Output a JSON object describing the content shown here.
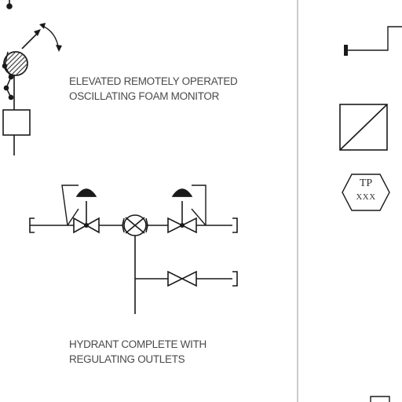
{
  "labels": {
    "foam_monitor": [
      "ELEVATED REMOTELY OPERATED",
      "OSCILLATING FOAM MONITOR"
    ],
    "hydrant": [
      "HYDRANT COMPLETE WITH",
      "REGULATING OUTLETS"
    ]
  },
  "tag_symbol": {
    "top": "TP",
    "bottom": "XXX"
  },
  "colors": {
    "line": "#1a1a1a",
    "hatch": "#444444",
    "text": "#4a4a4a"
  }
}
